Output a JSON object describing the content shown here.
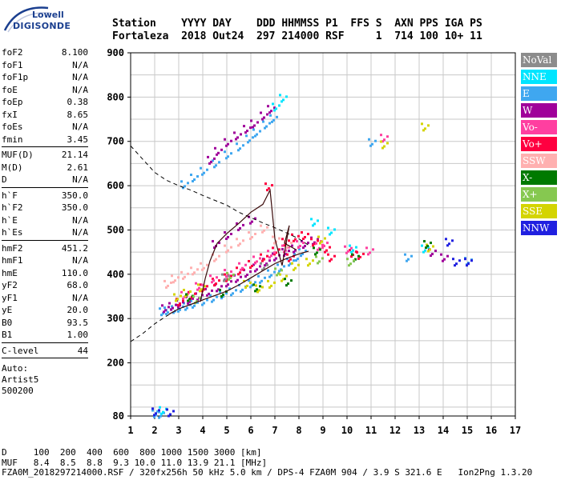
{
  "logo": {
    "line1": "Lowell",
    "line2": "DIGISONDE"
  },
  "header": {
    "labels": "Station    YYYY DAY    DDD HHMMSS P1  FFS S  AXN PPS IGA PS",
    "values": "Fortaleza  2018 Out24  297 214000 RSF     1  714 100 10+ 11"
  },
  "params": {
    "group1": [
      {
        "name": "foF2",
        "value": "8.100"
      },
      {
        "name": "foF1",
        "value": "N/A"
      },
      {
        "name": "foF1p",
        "value": "N/A"
      },
      {
        "name": "foE",
        "value": "N/A"
      },
      {
        "name": "foEp",
        "value": "0.38"
      },
      {
        "name": "fxI",
        "value": "8.65"
      },
      {
        "name": "foEs",
        "value": "N/A"
      },
      {
        "name": "fmin",
        "value": "3.45"
      }
    ],
    "group2": [
      {
        "name": "MUF(D)",
        "value": "21.14"
      },
      {
        "name": "M(D)",
        "value": "2.61"
      },
      {
        "name": "D",
        "value": "N/A"
      }
    ],
    "group3": [
      {
        "name": "h`F",
        "value": "350.0"
      },
      {
        "name": "h`F2",
        "value": "350.0"
      },
      {
        "name": "h`E",
        "value": "N/A"
      },
      {
        "name": "h`Es",
        "value": "N/A"
      }
    ],
    "group4": [
      {
        "name": "hmF2",
        "value": "451.2"
      },
      {
        "name": "hmF1",
        "value": "N/A"
      },
      {
        "name": "hmE",
        "value": "110.0"
      },
      {
        "name": "yF2",
        "value": "68.0"
      },
      {
        "name": "yF1",
        "value": "N/A"
      },
      {
        "name": "yE",
        "value": "20.0"
      },
      {
        "name": "B0",
        "value": "93.5"
      },
      {
        "name": "B1",
        "value": "1.00"
      }
    ],
    "group5": [
      {
        "name": "C-level",
        "value": "44"
      }
    ],
    "auto": [
      "Auto:",
      "Artist5",
      "500200"
    ]
  },
  "legend": [
    {
      "label": "NoVal",
      "color": "#8c8c8c"
    },
    {
      "label": "NNE",
      "color": "#00e5ff"
    },
    {
      "label": "E",
      "color": "#3fa7f0"
    },
    {
      "label": "W",
      "color": "#a0009a"
    },
    {
      "label": "Vo-",
      "color": "#ff3fa0"
    },
    {
      "label": "Vo+",
      "color": "#ff0040"
    },
    {
      "label": "SSW",
      "color": "#ffb0b0"
    },
    {
      "label": "X-",
      "color": "#007a00"
    },
    {
      "label": "X+",
      "color": "#86c850"
    },
    {
      "label": "SSE",
      "color": "#d4d400"
    },
    {
      "label": "NNW",
      "color": "#2020e0"
    }
  ],
  "footer": {
    "line1": "D     100  200  400  600  800 1000 1500 3000 [km]",
    "line2": "MUF   8.4  8.5  8.8  9.3 10.0 11.0 13.9 21.1 [MHz]",
    "line3": "FZA0M_2018297214000.RSF / 320fx256h 50 kHz 5.0 km / DPS-4 FZA0M 904 / 3.9 S 321.6 E   Ion2Png 1.3.20"
  },
  "chart_data": {
    "type": "scatter",
    "xlim": [
      1,
      17
    ],
    "ylim": [
      80,
      900
    ],
    "xticks": [
      1,
      2,
      3,
      4,
      5,
      6,
      7,
      8,
      9,
      10,
      11,
      12,
      13,
      14,
      15,
      16,
      17
    ],
    "yticks": [
      80,
      200,
      300,
      400,
      500,
      600,
      700,
      800,
      900
    ],
    "grid": true,
    "xlabel": "",
    "ylabel": "",
    "series": [
      {
        "color": "#3fa7f0",
        "points": [
          [
            2.3,
            318
          ],
          [
            2.5,
            320
          ],
          [
            2.8,
            323
          ],
          [
            3.0,
            326
          ],
          [
            3.3,
            330
          ],
          [
            3.6,
            335
          ],
          [
            4.0,
            341
          ],
          [
            4.4,
            348
          ],
          [
            4.8,
            356
          ],
          [
            5.2,
            363
          ],
          [
            5.6,
            371
          ],
          [
            6.0,
            381
          ],
          [
            6.4,
            391
          ],
          [
            6.8,
            404
          ],
          [
            7.2,
            417
          ],
          [
            7.6,
            430
          ],
          [
            7.9,
            441
          ],
          [
            8.1,
            452
          ],
          [
            3.2,
            605
          ],
          [
            3.6,
            620
          ],
          [
            4.0,
            635
          ],
          [
            4.5,
            652
          ],
          [
            5.0,
            672
          ],
          [
            5.5,
            690
          ],
          [
            5.9,
            708
          ],
          [
            6.2,
            722
          ],
          [
            6.6,
            740
          ],
          [
            6.9,
            754
          ],
          [
            2.0,
            88
          ],
          [
            2.2,
            86
          ],
          [
            12.5,
            440
          ],
          [
            15.0,
            432
          ],
          [
            11.0,
            700
          ]
        ]
      },
      {
        "color": "#a0009a",
        "points": [
          [
            2.4,
            325
          ],
          [
            2.7,
            330
          ],
          [
            3.0,
            336
          ],
          [
            3.4,
            344
          ],
          [
            3.8,
            352
          ],
          [
            4.2,
            362
          ],
          [
            4.6,
            372
          ],
          [
            5.0,
            383
          ],
          [
            5.4,
            393
          ],
          [
            5.8,
            405
          ],
          [
            6.2,
            417
          ],
          [
            6.6,
            430
          ],
          [
            7.0,
            442
          ],
          [
            7.4,
            452
          ],
          [
            7.8,
            460
          ],
          [
            8.2,
            470
          ],
          [
            8.6,
            478
          ],
          [
            4.3,
            660
          ],
          [
            4.6,
            680
          ],
          [
            5.0,
            700
          ],
          [
            5.4,
            715
          ],
          [
            5.8,
            730
          ],
          [
            6.1,
            742
          ],
          [
            6.5,
            760
          ],
          [
            6.8,
            775
          ],
          [
            4.5,
            470
          ],
          [
            5.0,
            490
          ],
          [
            5.5,
            510
          ],
          [
            6.0,
            525
          ],
          [
            13.5,
            452
          ],
          [
            14.0,
            440
          ]
        ]
      },
      {
        "color": "#ff0040",
        "points": [
          [
            3.0,
            340
          ],
          [
            3.5,
            355
          ],
          [
            4.0,
            372
          ],
          [
            4.5,
            385
          ],
          [
            5.0,
            395
          ],
          [
            5.5,
            410
          ],
          [
            6.0,
            425
          ],
          [
            6.5,
            440
          ],
          [
            7.0,
            455
          ],
          [
            7.4,
            475
          ],
          [
            7.8,
            485
          ],
          [
            8.2,
            490
          ],
          [
            8.6,
            475
          ],
          [
            9.1,
            460
          ],
          [
            9.3,
            440
          ],
          [
            10.2,
            450
          ],
          [
            10.5,
            445
          ],
          [
            6.7,
            600
          ],
          [
            7.6,
            440
          ]
        ]
      },
      {
        "color": "#ff3fa0",
        "points": [
          [
            3.2,
            355
          ],
          [
            3.8,
            375
          ],
          [
            4.4,
            392
          ],
          [
            5.0,
            405
          ],
          [
            5.6,
            420
          ],
          [
            6.2,
            435
          ],
          [
            6.8,
            448
          ],
          [
            7.4,
            460
          ],
          [
            8.0,
            470
          ],
          [
            8.8,
            465
          ],
          [
            9.0,
            470
          ],
          [
            10.0,
            458
          ],
          [
            10.9,
            455
          ],
          [
            11.5,
            710
          ]
        ]
      },
      {
        "color": "#ffb0b0",
        "points": [
          [
            2.5,
            380
          ],
          [
            2.8,
            392
          ],
          [
            3.2,
            400
          ],
          [
            3.6,
            410
          ],
          [
            4.0,
            420
          ],
          [
            4.5,
            440
          ],
          [
            5.0,
            460
          ],
          [
            5.5,
            475
          ],
          [
            6.0,
            490
          ],
          [
            6.5,
            505
          ],
          [
            7.0,
            480
          ],
          [
            7.5,
            470
          ]
        ]
      },
      {
        "color": "#d4d400",
        "points": [
          [
            2.9,
            350
          ],
          [
            3.3,
            360
          ],
          [
            3.9,
            372
          ],
          [
            5.8,
            380
          ],
          [
            6.3,
            370
          ],
          [
            6.8,
            380
          ],
          [
            7.3,
            395
          ],
          [
            7.8,
            420
          ],
          [
            8.4,
            430
          ],
          [
            8.9,
            480
          ],
          [
            11.5,
            695
          ],
          [
            13.2,
            735
          ],
          [
            13.4,
            462
          ]
        ]
      },
      {
        "color": "#00e5ff",
        "points": [
          [
            7.3,
            800
          ],
          [
            7.0,
            780
          ],
          [
            8.6,
            520
          ],
          [
            9.3,
            500
          ],
          [
            10.2,
            460
          ],
          [
            13.2,
            460
          ],
          [
            2.3,
            95
          ]
        ]
      },
      {
        "color": "#007a00",
        "points": [
          [
            3.4,
            350
          ],
          [
            4.8,
            360
          ],
          [
            6.2,
            372
          ],
          [
            7.5,
            385
          ],
          [
            8.7,
            455
          ],
          [
            10.3,
            440
          ],
          [
            13.3,
            470
          ]
        ]
      },
      {
        "color": "#86c850",
        "points": [
          [
            3.7,
            345
          ],
          [
            5.1,
            398
          ],
          [
            7.1,
            408
          ],
          [
            8.8,
            435
          ],
          [
            10.1,
            430
          ]
        ]
      },
      {
        "color": "#2020e0",
        "points": [
          [
            2.0,
            92
          ],
          [
            2.6,
            90
          ],
          [
            14.2,
            475
          ],
          [
            15.0,
            430
          ],
          [
            14.5,
            430
          ]
        ]
      },
      {
        "color": "#8c8c8c",
        "points": [
          [
            4.9,
            395
          ],
          [
            6.5,
            420
          ]
        ]
      }
    ],
    "lines": [
      {
        "kind": "dashed",
        "points": [
          [
            1,
            690
          ],
          [
            1.5,
            660
          ],
          [
            2,
            630
          ],
          [
            2.5,
            612
          ],
          [
            3,
            600
          ],
          [
            3.5,
            590
          ],
          [
            4,
            578
          ],
          [
            4.5,
            567
          ],
          [
            5,
            556
          ],
          [
            5.5,
            540
          ],
          [
            6,
            528
          ],
          [
            6.5,
            516
          ],
          [
            7,
            505
          ],
          [
            7.5,
            493
          ],
          [
            8,
            480
          ],
          [
            8.5,
            462
          ]
        ]
      },
      {
        "kind": "dashed",
        "points": [
          [
            1,
            248
          ],
          [
            1.5,
            266
          ],
          [
            2,
            288
          ],
          [
            2.5,
            306
          ],
          [
            3,
            322
          ]
        ]
      },
      {
        "kind": "solid",
        "points": [
          [
            2.6,
            310
          ],
          [
            3,
            322
          ],
          [
            3.5,
            332
          ],
          [
            4,
            342
          ],
          [
            4.5,
            352
          ],
          [
            5,
            362
          ],
          [
            5.5,
            376
          ],
          [
            6,
            392
          ],
          [
            6.5,
            408
          ],
          [
            7,
            424
          ],
          [
            7.5,
            436
          ],
          [
            8,
            446
          ],
          [
            8.4,
            452
          ]
        ]
      },
      {
        "kind": "solid",
        "points": [
          [
            3.9,
            338
          ],
          [
            4.1,
            390
          ],
          [
            4.3,
            430
          ],
          [
            4.6,
            470
          ],
          [
            5.0,
            492
          ],
          [
            5.5,
            515
          ],
          [
            6.0,
            540
          ],
          [
            6.5,
            558
          ],
          [
            6.8,
            590
          ],
          [
            7.0,
            480
          ],
          [
            7.3,
            420
          ],
          [
            7.6,
            510
          ],
          [
            7.4,
            470
          ],
          [
            7.9,
            455
          ]
        ]
      }
    ]
  }
}
